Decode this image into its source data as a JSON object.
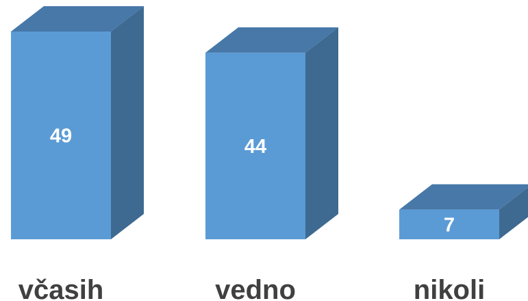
{
  "chart_data": {
    "type": "bar",
    "three_d": true,
    "categories": [
      "včasih",
      "vedno",
      "nikoli"
    ],
    "values": [
      49,
      44,
      7
    ],
    "data_labels": [
      "49",
      "44",
      "7"
    ],
    "title": "",
    "xlabel": "",
    "ylabel": "",
    "ylim": [
      0,
      49
    ],
    "grid": false,
    "legend": "none",
    "colors": {
      "front": "#5b9bd5",
      "side": "#3e6a91",
      "top": "#4778a8",
      "label_text": "#ffffff",
      "category_text": "#404040"
    }
  }
}
